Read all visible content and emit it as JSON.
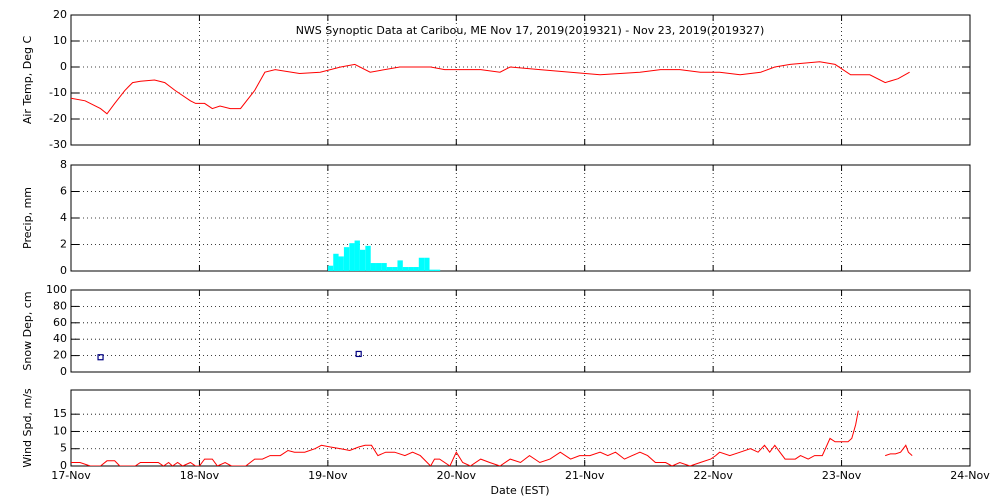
{
  "chart_data": [
    {
      "type": "line",
      "title": "NWS Synoptic Data at Caribou, ME   Nov 17, 2019(2019321) - Nov 23, 2019(2019327)",
      "ylabel": "Air Temp, Deg C",
      "color": "#ff0000",
      "xlim": [
        0,
        7
      ],
      "ylim": [
        -30,
        20
      ],
      "yticks": [
        -30,
        -20,
        -10,
        0,
        10,
        20
      ],
      "grid": true,
      "x": [
        0,
        0.11,
        0.23,
        0.28,
        0.34,
        0.42,
        0.48,
        0.54,
        0.65,
        0.73,
        0.81,
        0.93,
        0.97,
        1.04,
        1.1,
        1.16,
        1.24,
        1.32,
        1.43,
        1.51,
        1.59,
        1.78,
        1.94,
        2.1,
        2.21,
        2.33,
        2.56,
        2.8,
        2.91,
        3.19,
        3.34,
        3.42,
        3.65,
        3.89,
        4.12,
        4.43,
        4.59,
        4.74,
        4.9,
        5.05,
        5.21,
        5.37,
        5.48,
        5.6,
        5.83,
        5.95,
        6.07,
        6.22,
        6.34,
        6.44,
        6.53
      ],
      "values": [
        -12,
        -13,
        -16,
        -18,
        -14,
        -9,
        -6,
        -5.5,
        -5,
        -6,
        -9,
        -13,
        -14,
        -14,
        -16,
        -15,
        -16,
        -16,
        -9,
        -2,
        -1,
        -2.5,
        -2,
        0,
        1,
        -2,
        0,
        0,
        -1,
        -1,
        -2,
        0,
        -1,
        -2,
        -3,
        -2,
        -1,
        -1,
        -2,
        -2,
        -3,
        -2,
        0,
        1,
        2,
        1,
        -3,
        -3,
        -6,
        -4.5,
        -2
      ]
    },
    {
      "type": "bar",
      "ylabel": "Precip, mm",
      "color": "#00ffff",
      "xlim": [
        0,
        7
      ],
      "ylim": [
        0,
        8
      ],
      "yticks": [
        0,
        2,
        4,
        6,
        8
      ],
      "grid": true,
      "x": [
        2.0,
        2.042,
        2.083,
        2.125,
        2.167,
        2.208,
        2.25,
        2.292,
        2.333,
        2.375,
        2.417,
        2.458,
        2.5,
        2.542,
        2.583,
        2.625,
        2.667,
        2.708,
        2.75,
        2.792,
        2.833
      ],
      "values": [
        0.4,
        1.3,
        1.1,
        1.8,
        2.1,
        2.3,
        1.6,
        1.9,
        0.6,
        0.6,
        0.6,
        0.3,
        0.3,
        0.8,
        0.3,
        0.3,
        0.3,
        1.0,
        1.0,
        0.1,
        0.1
      ]
    },
    {
      "type": "scatter",
      "ylabel": "Snow Dep, cm",
      "color": "#000080",
      "xlim": [
        0,
        7
      ],
      "ylim": [
        0,
        100
      ],
      "yticks": [
        0,
        20,
        40,
        60,
        80,
        100
      ],
      "grid": true,
      "x": [
        0.23,
        2.24
      ],
      "values": [
        18,
        22
      ]
    },
    {
      "type": "line",
      "ylabel": "Wind Spd, m/s",
      "xlabel": "Date (EST)",
      "color": "#ff0000",
      "xlim": [
        0,
        7
      ],
      "ylim": [
        0,
        22
      ],
      "yticks": [
        0,
        5,
        10,
        15
      ],
      "grid": true,
      "xticks": [
        {
          "value": 0,
          "label": "17-Nov"
        },
        {
          "value": 1,
          "label": "18-Nov"
        },
        {
          "value": 2,
          "label": "19-Nov"
        },
        {
          "value": 3,
          "label": "20-Nov"
        },
        {
          "value": 4,
          "label": "21-Nov"
        },
        {
          "value": 5,
          "label": "22-Nov"
        },
        {
          "value": 6,
          "label": "23-Nov"
        },
        {
          "value": 7,
          "label": "24-Nov"
        }
      ],
      "x": [
        0,
        0.07,
        0.15,
        0.23,
        0.28,
        0.34,
        0.38,
        0.5,
        0.54,
        0.61,
        0.68,
        0.72,
        0.76,
        0.79,
        0.83,
        0.87,
        0.93,
        0.97,
        1.0,
        1.04,
        1.1,
        1.14,
        1.2,
        1.25,
        1.36,
        1.43,
        1.49,
        1.55,
        1.63,
        1.69,
        1.74,
        1.82,
        1.9,
        1.95,
        2.02,
        2.1,
        2.17,
        2.24,
        2.29,
        2.34,
        2.39,
        2.45,
        2.52,
        2.6,
        2.66,
        2.72,
        2.8,
        2.83,
        2.87,
        2.95,
        3.0,
        3.05,
        3.11,
        3.19,
        3.26,
        3.34,
        3.42,
        3.5,
        3.57,
        3.65,
        3.73,
        3.81,
        3.89,
        3.96,
        4.04,
        4.12,
        4.18,
        4.24,
        4.31,
        4.37,
        4.43,
        4.49,
        4.55,
        4.63,
        4.68,
        4.74,
        4.82,
        4.9,
        4.98,
        5.02,
        5.05,
        5.13,
        5.21,
        5.29,
        5.35,
        5.4,
        5.44,
        5.48,
        5.52,
        5.56,
        5.64,
        5.68,
        5.74,
        5.79,
        5.85,
        5.91,
        5.95,
        5.99,
        6.05,
        6.08,
        6.11,
        6.13,
        6.2,
        6.34,
        6.38,
        6.42,
        6.46,
        6.5,
        6.52,
        6.55
      ],
      "values": [
        1,
        1,
        0,
        0,
        1.5,
        1.5,
        0,
        0,
        1,
        1,
        1,
        0,
        1,
        0,
        1,
        0,
        1,
        0,
        0,
        2,
        2,
        0,
        1,
        0,
        0,
        2,
        2,
        3,
        3,
        4.5,
        4,
        4,
        5,
        6,
        5.5,
        5,
        4.5,
        5.5,
        6,
        6,
        3,
        4,
        4,
        3,
        4,
        3,
        0,
        2,
        2,
        0,
        4,
        1,
        0,
        2,
        1,
        0,
        2,
        1,
        3,
        1,
        2,
        4,
        2,
        3,
        3,
        4,
        3,
        4,
        2,
        3,
        4,
        3,
        1,
        1,
        0,
        1,
        0,
        1,
        2,
        3,
        4,
        3,
        4,
        5,
        4,
        6,
        4,
        6,
        4,
        2,
        2,
        3,
        2,
        3,
        3,
        8,
        7,
        7,
        7,
        8,
        12,
        16,
        null,
        3,
        3.5,
        3.5,
        4,
        6,
        4,
        3
      ]
    }
  ]
}
